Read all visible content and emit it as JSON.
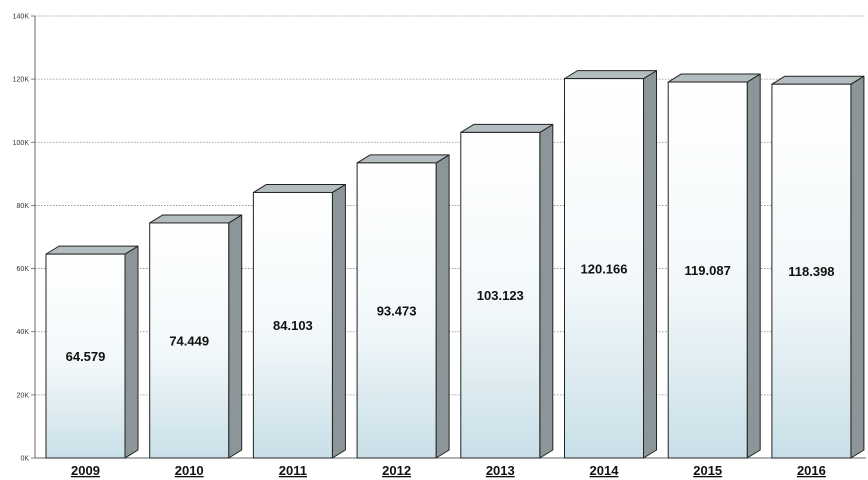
{
  "chart_data": {
    "type": "bar",
    "title": "",
    "xlabel": "",
    "ylabel": "",
    "categories": [
      "2009",
      "2010",
      "2011",
      "2012",
      "2013",
      "2014",
      "2015",
      "2016"
    ],
    "values": [
      64579,
      74449,
      84103,
      93473,
      103123,
      120166,
      119087,
      118398
    ],
    "data_labels": [
      "64.579",
      "74.449",
      "84.103",
      "93.473",
      "103.123",
      "120.166",
      "119.087",
      "118.398"
    ],
    "y_ticks": [
      0,
      20000,
      40000,
      60000,
      80000,
      100000,
      120000,
      140000
    ],
    "y_tick_labels": [
      "0K",
      "20K",
      "40K",
      "60K",
      "80K",
      "100K",
      "120K",
      "140K"
    ],
    "ylim": [
      0,
      140000
    ],
    "grid": true,
    "legend": "none",
    "style": "3d-column"
  },
  "colors": {
    "bar_front_top": "#ffffff",
    "bar_front_bottom": "#c9dfe8",
    "bar_side": "#8c9698",
    "bar_top": "#b3bcbe",
    "bar_outline": "#222222",
    "gridline": "#8a8a8a",
    "axis": "#666666"
  }
}
